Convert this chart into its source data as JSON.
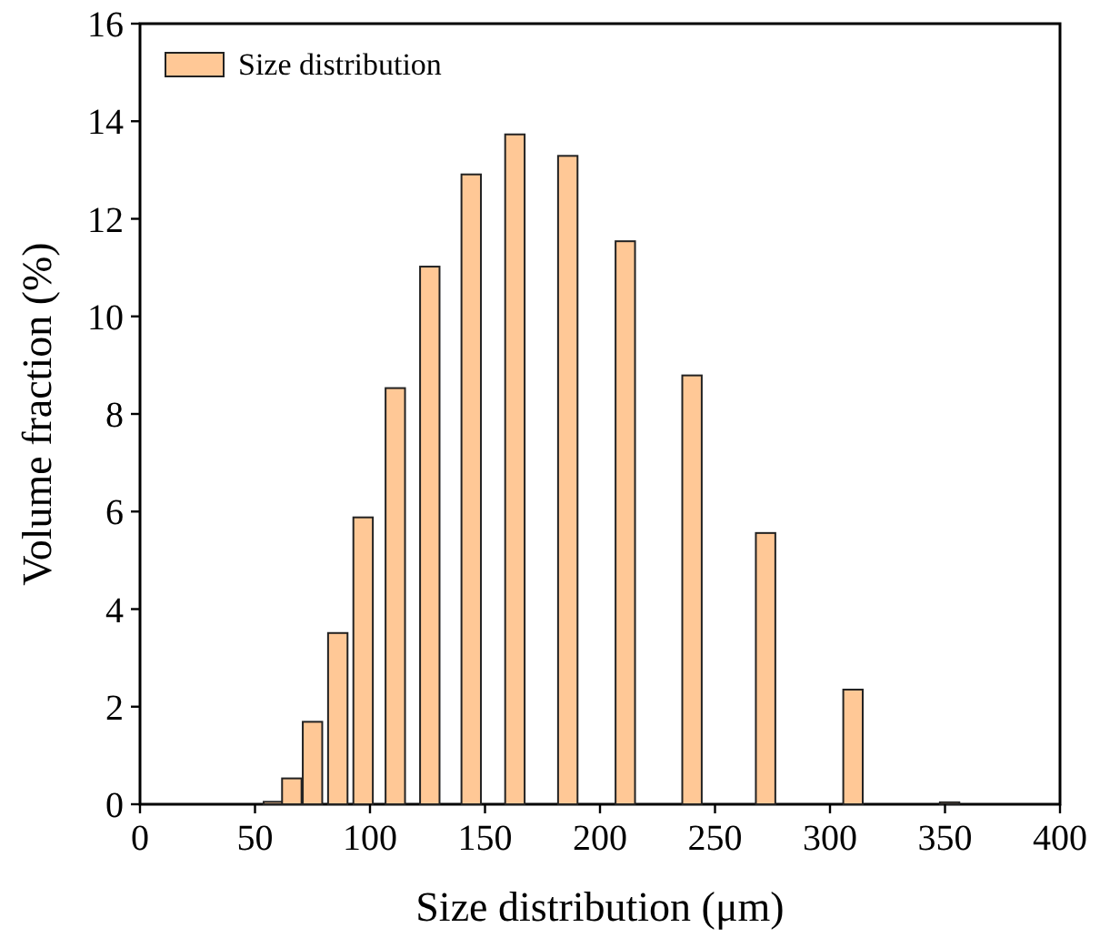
{
  "chart_data": {
    "type": "bar",
    "xlabel": "Size distribution (μm)",
    "ylabel": "Volume fraction (%)",
    "x": [
      58,
      66,
      75,
      86,
      97,
      111,
      126,
      144,
      163,
      186,
      211,
      240,
      272,
      310,
      352
    ],
    "series": [
      {
        "name": "Size distribution",
        "color": "#ffc896",
        "values": [
          0.05,
          0.53,
          1.69,
          3.51,
          5.88,
          8.53,
          11.02,
          12.91,
          13.73,
          13.29,
          11.54,
          8.79,
          5.56,
          2.35,
          0.04
        ]
      }
    ],
    "xlim": [
      0,
      400
    ],
    "xticks": [
      0,
      50,
      100,
      150,
      200,
      250,
      300,
      350,
      400
    ],
    "ylim": [
      0,
      16
    ],
    "yticks": [
      0,
      2,
      4,
      6,
      8,
      10,
      12,
      14,
      16
    ],
    "legend": "top left",
    "grid": false
  }
}
